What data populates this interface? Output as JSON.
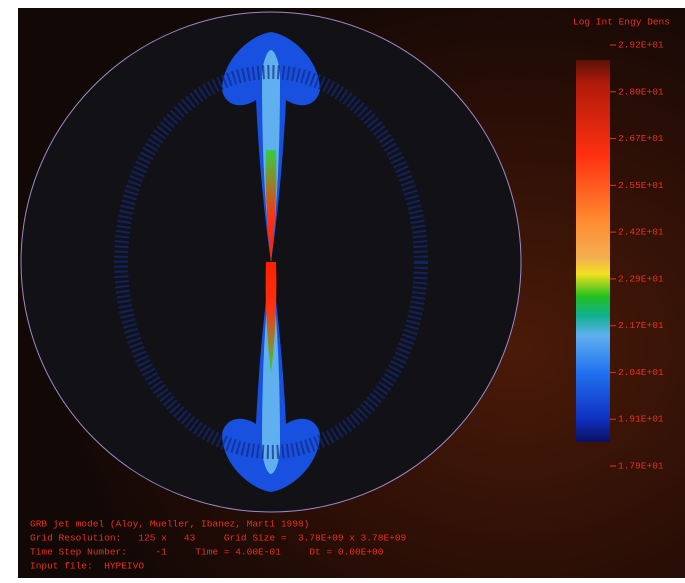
{
  "colorbar": {
    "title": "Log Int Engy Dens",
    "ticks": [
      "2.92E+01",
      "2.80E+01",
      "2.67E+01",
      "2.55E+01",
      "2.42E+01",
      "2.29E+01",
      "2.17E+01",
      "2.04E+01",
      "1.91E+01",
      "1.79E+01"
    ]
  },
  "caption": {
    "lines": [
      "GRB jet model (Aloy, Mueller, Ibanez, Marti 1998)",
      "Grid Resolution:   125 x   43     Grid Size =  3.78E+09 x 3.78E+09",
      "Time Step Number:     -1     Time = 4.00E-01     Dt = 0.00E+00",
      "Input file:  HYPEIVO"
    ]
  }
}
